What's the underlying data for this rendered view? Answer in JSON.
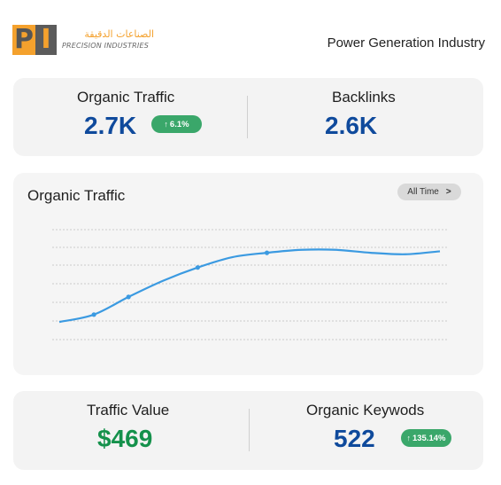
{
  "header": {
    "logo": {
      "mark_p": "P",
      "mark_i": "I",
      "arabic": "الصناعات الدقيقة",
      "english": "PRECISION INDUSTRIES"
    },
    "title": "Power Generation Industry"
  },
  "top_card": {
    "organic_traffic": {
      "label": "Organic Traffic",
      "value": "2.7K",
      "change": "6.1%",
      "change_icon": "arrow-up-icon"
    },
    "backlinks": {
      "label": "Backlinks",
      "value": "2.6K"
    }
  },
  "chart_card": {
    "title": "Organic Traffic",
    "range_button": {
      "label": "All Time",
      "icon": "chevron-right-icon"
    },
    "colors": {
      "line": "#3b9ae1",
      "grid": "#bdbdbd"
    }
  },
  "bottom_card": {
    "traffic_value": {
      "label": "Traffic Value",
      "value": "$469"
    },
    "organic_keywords": {
      "label": "Organic Keywods",
      "value": "522",
      "change": "135.14%",
      "change_icon": "arrow-up-icon"
    }
  },
  "chart_data": {
    "type": "line",
    "title": "Organic Traffic",
    "xlabel": "",
    "ylabel": "",
    "grid": true,
    "legend": "none",
    "x": [
      0,
      1,
      2,
      3,
      4,
      5,
      6,
      7,
      8,
      9,
      10,
      11
    ],
    "series": [
      {
        "values": [
          0.18,
          0.23,
          0.35,
          0.46,
          0.55,
          0.62,
          0.65,
          0.67,
          0.67,
          0.65,
          0.64,
          0.66
        ]
      }
    ],
    "markers": [
      1,
      2,
      4,
      6
    ],
    "ylim": [
      0,
      1
    ]
  }
}
